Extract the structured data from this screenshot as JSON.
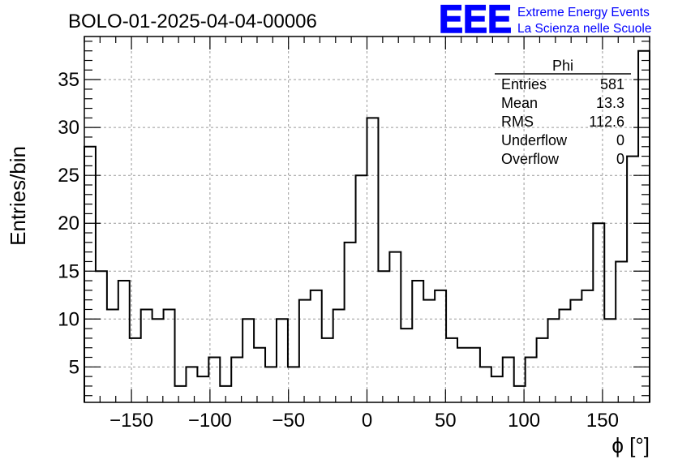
{
  "chart_data": {
    "type": "histogram",
    "title": "BOLO-01-2025-04-04-00006",
    "xlabel": "ϕ [°]",
    "ylabel": "Entries/bin",
    "xlim": [
      -180,
      180
    ],
    "ylim": [
      1.3,
      39.5
    ],
    "xticks": [
      -150,
      -100,
      -50,
      0,
      50,
      100,
      150
    ],
    "yticks": [
      5,
      10,
      15,
      20,
      25,
      30,
      35
    ],
    "grid": true,
    "bin_width": 7.2,
    "bin_low_edges": [
      -180,
      -172.8,
      -165.6,
      -158.4,
      -151.2,
      -144,
      -136.8,
      -129.6,
      -122.4,
      -115.2,
      -108,
      -100.8,
      -93.6,
      -86.4,
      -79.2,
      -72,
      -64.8,
      -57.6,
      -50.4,
      -43.2,
      -36,
      -28.8,
      -21.6,
      -14.4,
      -7.2,
      0,
      7.2,
      14.4,
      21.6,
      28.8,
      36,
      43.2,
      50.4,
      57.6,
      64.8,
      72,
      79.2,
      86.4,
      93.6,
      100.8,
      108,
      115.2,
      122.4,
      129.6,
      136.8,
      144,
      151.2,
      158.4,
      165.6,
      172.8
    ],
    "values": [
      28,
      15,
      11,
      14,
      8,
      11,
      10,
      11,
      3,
      5,
      4,
      6,
      3,
      6,
      10,
      7,
      5,
      10,
      5,
      12,
      13,
      8,
      11,
      18,
      25,
      31,
      15,
      17,
      9,
      14,
      12,
      13,
      8,
      7,
      7,
      5,
      4,
      6,
      3,
      6,
      8,
      10,
      11,
      12,
      13,
      20,
      10,
      16,
      27,
      38
    ],
    "stats_box": {
      "title": "Phi",
      "rows": [
        {
          "label": "Entries",
          "value": "581"
        },
        {
          "label": "Mean",
          "value": "13.3"
        },
        {
          "label": "RMS",
          "value": "112.6"
        },
        {
          "label": "Underflow",
          "value": "0"
        },
        {
          "label": "Overflow",
          "value": "0"
        }
      ],
      "placement": "top-right"
    }
  },
  "logo": {
    "letters": "EEE",
    "line1": "Extreme Energy Events",
    "line2": "La Scienza nelle Scuole",
    "color": "#0000ff"
  },
  "colors": {
    "line": "#000000",
    "grid": "#9a9a9a",
    "background": "#ffffff"
  }
}
